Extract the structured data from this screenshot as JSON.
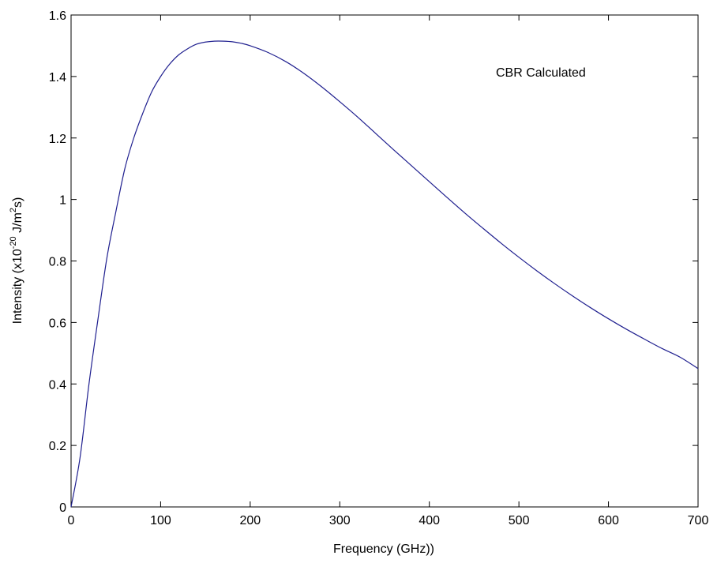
{
  "chart_data": {
    "type": "line",
    "title": "",
    "xlabel": "Frequency (GHz))",
    "ylabel": {
      "prefix": "Intensity (x10",
      "exp": "-20",
      "mid": " J/m",
      "exp2": "2",
      "suffix": "s)"
    },
    "xlim": [
      0,
      700
    ],
    "ylim": [
      0,
      1.6
    ],
    "xticks": [
      0,
      100,
      200,
      300,
      400,
      500,
      600,
      700
    ],
    "yticks": [
      0,
      0.2,
      0.4,
      0.6,
      0.8,
      1,
      1.2,
      1.4,
      1.6
    ],
    "xtick_labels": [
      "0",
      "100",
      "200",
      "300",
      "400",
      "500",
      "600",
      "700"
    ],
    "ytick_labels": [
      "0",
      "0.2",
      "0.4",
      "0.6",
      "0.8",
      "1",
      "1.2",
      "1.4",
      "1.6"
    ],
    "grid": false,
    "annotation": "CBR Calculated",
    "series": [
      {
        "color": "#1f1f8f",
        "x": [
          0,
          10,
          20,
          30,
          40,
          50,
          60,
          70,
          80,
          90,
          100,
          110,
          120,
          130,
          140,
          150,
          160,
          170,
          180,
          190,
          200,
          220,
          240,
          260,
          280,
          300,
          320,
          340,
          360,
          380,
          400,
          420,
          440,
          460,
          480,
          500,
          520,
          540,
          560,
          580,
          600,
          620,
          640,
          660,
          680,
          700
        ],
        "y": [
          0,
          0.16,
          0.4,
          0.61,
          0.81,
          0.96,
          1.1,
          1.2,
          1.28,
          1.35,
          1.4,
          1.44,
          1.47,
          1.49,
          1.505,
          1.512,
          1.515,
          1.515,
          1.513,
          1.508,
          1.5,
          1.478,
          1.448,
          1.41,
          1.366,
          1.318,
          1.268,
          1.215,
          1.162,
          1.11,
          1.058,
          1.006,
          0.955,
          0.906,
          0.858,
          0.812,
          0.768,
          0.726,
          0.686,
          0.648,
          0.612,
          0.578,
          0.546,
          0.515,
          0.487,
          0.45
        ]
      }
    ]
  },
  "style": {
    "axis_color": "#000000",
    "background": "#ffffff"
  }
}
